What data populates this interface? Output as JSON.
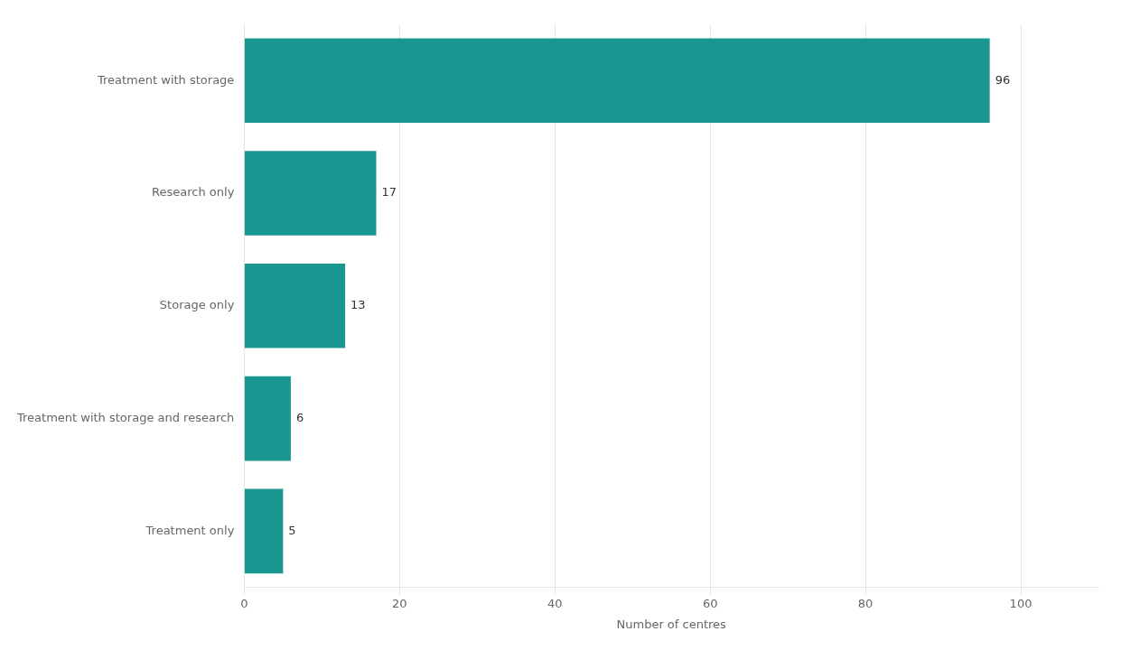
{
  "chart_data": {
    "type": "bar",
    "orientation": "horizontal",
    "categories": [
      "Treatment with storage",
      "Research only",
      "Storage only",
      "Treatment with storage and research",
      "Treatment only"
    ],
    "values": [
      96,
      17,
      13,
      6,
      5
    ],
    "color": "#1a9690",
    "xlabel": "Number of centres",
    "xlim": [
      0,
      110
    ],
    "xticks": [
      0,
      20,
      40,
      60,
      80,
      100
    ],
    "grid": true,
    "data_labels": true
  }
}
